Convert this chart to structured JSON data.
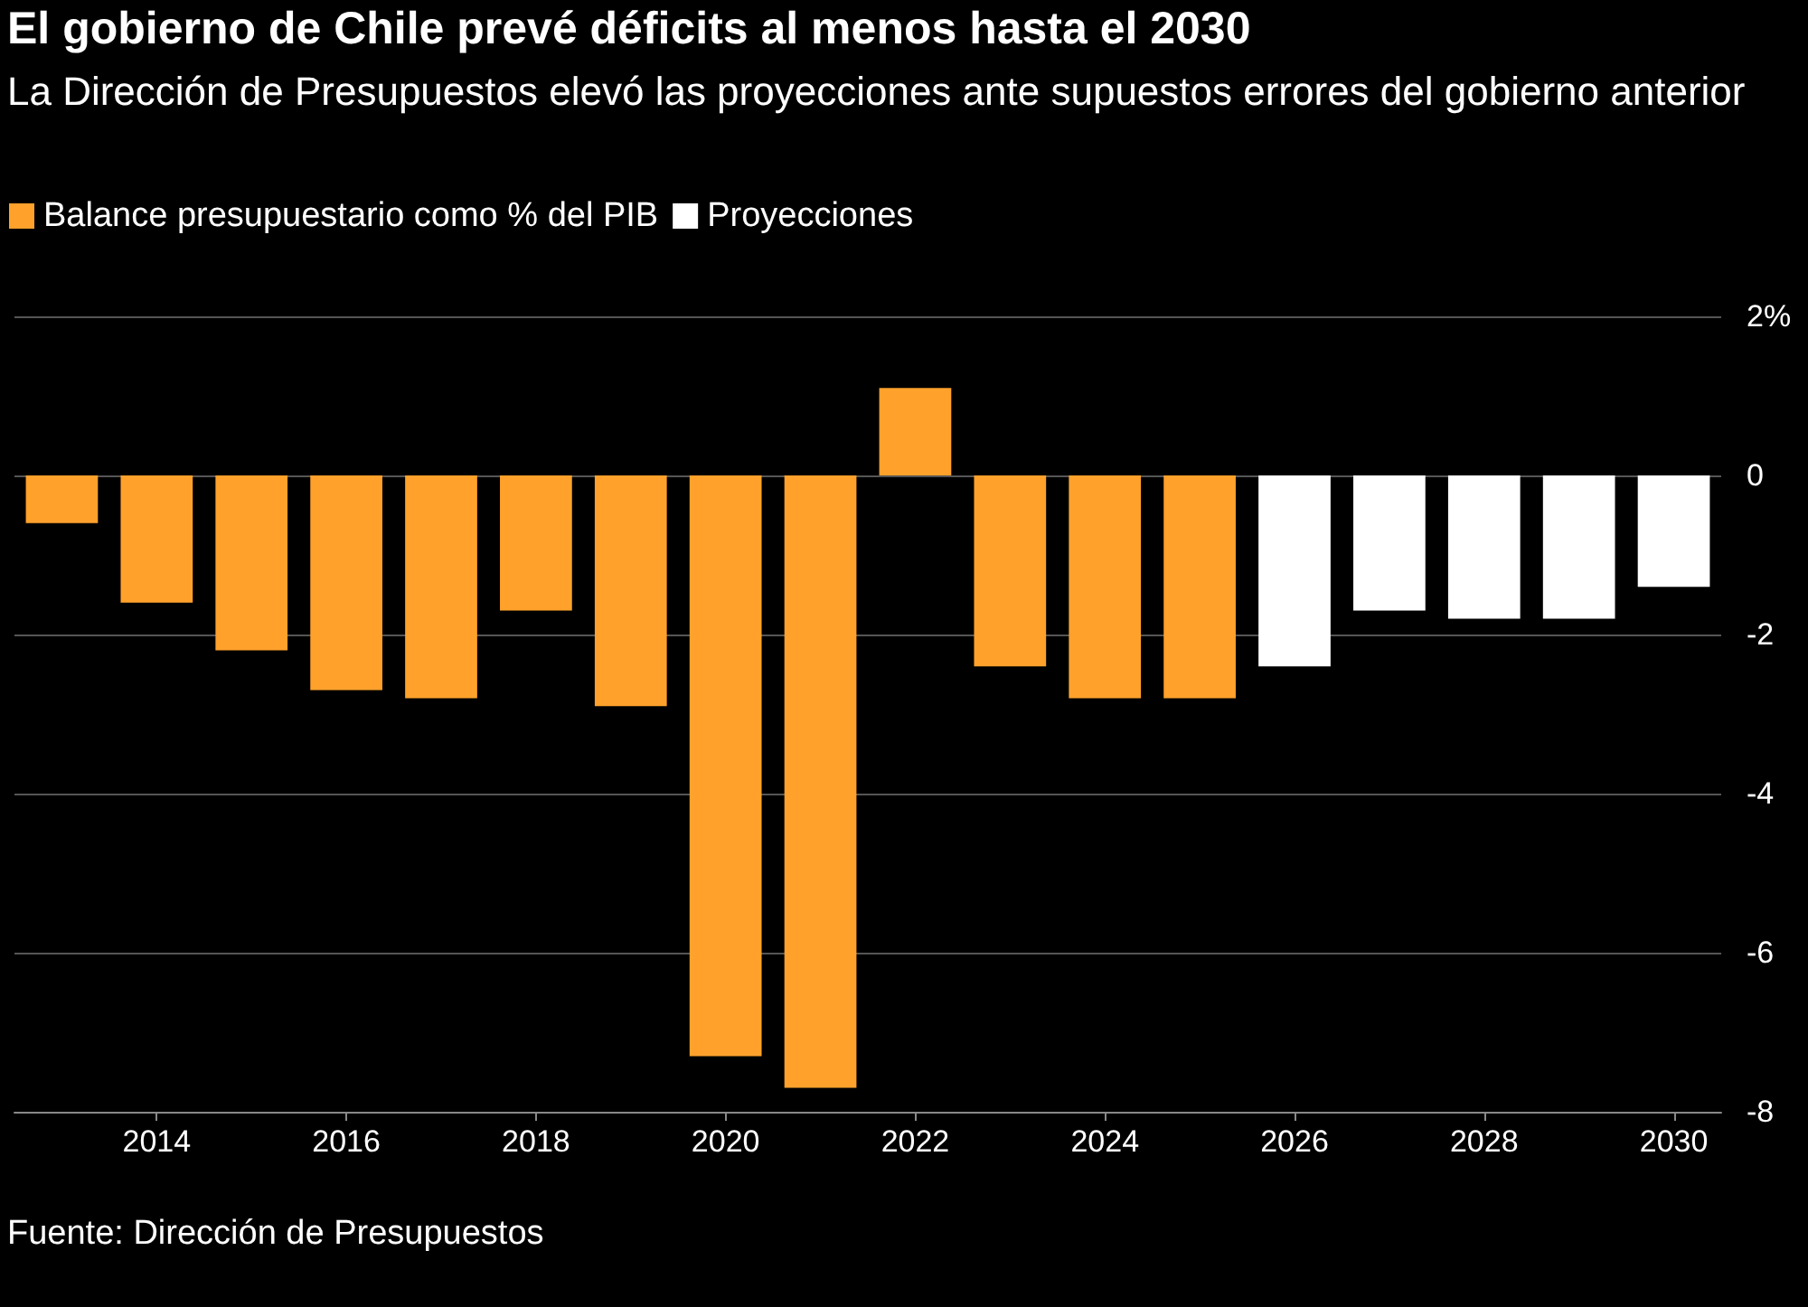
{
  "chart_data": {
    "type": "bar",
    "title": "El gobierno de Chile prevé déficits al menos hasta el 2030",
    "subtitle": "La Dirección de Presupuestos elevó las proyecciones ante supuestos errores del gobierno anterior",
    "categories": [
      null,
      "2014",
      null,
      "2016",
      null,
      "2018",
      null,
      "2020",
      null,
      "2022",
      null,
      "2024",
      null,
      "2026",
      null,
      "2028",
      null,
      "2030"
    ],
    "series": [
      {
        "name": "Balance presupuestario como % del PIB",
        "color": "#ffa12b",
        "values": [
          -0.6,
          -1.6,
          -2.2,
          -2.7,
          -2.8,
          -1.7,
          -2.9,
          -7.3,
          -7.7,
          1.1,
          -2.4,
          -2.8,
          -2.8,
          null,
          null,
          null,
          null,
          null
        ]
      },
      {
        "name": "Proyecciones",
        "color": "#ffffff",
        "values": [
          null,
          null,
          null,
          null,
          null,
          null,
          null,
          null,
          null,
          null,
          null,
          null,
          null,
          -2.4,
          -1.7,
          -1.8,
          -1.8,
          -1.4
        ]
      }
    ],
    "ylim": [
      -8,
      2
    ],
    "yticks": [
      {
        "value": 2,
        "label": "2%"
      },
      0,
      -2,
      -4,
      -6,
      -8
    ],
    "grid": "y",
    "legend": "top left",
    "annotations": [
      "Fuente: Dirección de Presupuestos"
    ]
  }
}
